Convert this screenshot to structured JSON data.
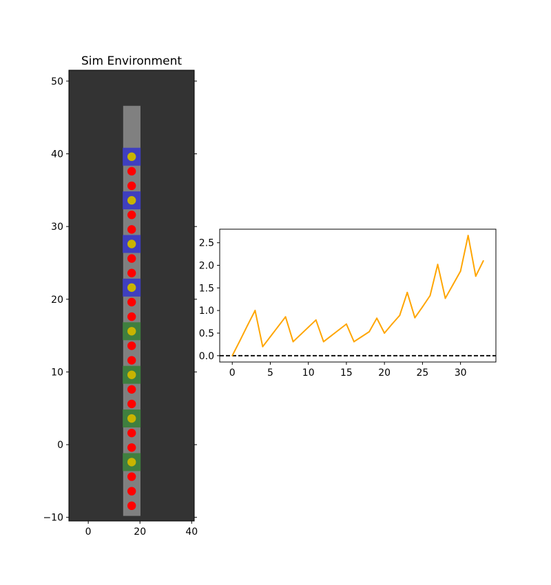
{
  "chart_data": [
    {
      "type": "scatter",
      "title": "Sim Environment",
      "xlabel": "",
      "ylabel": "",
      "xlim": [
        -7.5,
        41
      ],
      "ylim": [
        -10.5,
        51.5
      ],
      "xticks": [
        0,
        20,
        40
      ],
      "yticks": [
        -10,
        0,
        10,
        20,
        30,
        40,
        50
      ],
      "grid": false,
      "background_color": "#333333",
      "track": {
        "x_range": [
          13.5,
          20.2
        ],
        "y_range": [
          -9.8,
          46.6
        ],
        "color": "#808080"
      },
      "zones": [
        {
          "x": 16.8,
          "y": 39.6,
          "color": "#3f3fbf"
        },
        {
          "x": 16.8,
          "y": 33.6,
          "color": "#3f3fbf"
        },
        {
          "x": 16.8,
          "y": 27.6,
          "color": "#3f3fbf"
        },
        {
          "x": 16.8,
          "y": 21.6,
          "color": "#3f3fbf"
        },
        {
          "x": 16.8,
          "y": 15.6,
          "color": "#3f7f3f"
        },
        {
          "x": 16.8,
          "y": 9.6,
          "color": "#3f7f3f"
        },
        {
          "x": 16.8,
          "y": 3.6,
          "color": "#3f7f3f"
        },
        {
          "x": 16.8,
          "y": -2.4,
          "color": "#3f7f3f"
        }
      ],
      "yellow_points": {
        "color": "#c8b400",
        "x": 16.8,
        "y": [
          39.6,
          33.6,
          27.6,
          21.6,
          15.6,
          9.6,
          3.6,
          -2.4
        ]
      },
      "red_points": {
        "color": "#ff0000",
        "x": 16.8,
        "y": [
          37.6,
          35.6,
          31.6,
          29.6,
          25.6,
          23.6,
          19.6,
          17.6,
          13.6,
          11.6,
          7.6,
          5.6,
          1.6,
          -0.4,
          -4.4,
          -6.4,
          -8.4
        ]
      }
    },
    {
      "type": "line",
      "title": "",
      "xlabel": "",
      "ylabel": "",
      "xlim": [
        -1.65,
        34.65
      ],
      "ylim": [
        -0.14,
        2.8
      ],
      "xticks": [
        0,
        5,
        10,
        15,
        20,
        25,
        30
      ],
      "yticks": [
        0.0,
        0.5,
        1.0,
        1.5,
        2.0,
        2.5
      ],
      "ytick_labels": [
        "0.0",
        "0.5",
        "1.0",
        "1.5",
        "2.0",
        "2.5"
      ],
      "grid": false,
      "reference_line": {
        "y": 0,
        "style": "dashed",
        "color": "#000000"
      },
      "series": [
        {
          "color": "#ffa500",
          "x": [
            0,
            1,
            2,
            3,
            4,
            5,
            6,
            7,
            8,
            9,
            10,
            11,
            12,
            13,
            14,
            15,
            16,
            17,
            18,
            19,
            20,
            21,
            22,
            23,
            24,
            25,
            26,
            27,
            28,
            29,
            30,
            31,
            32,
            33
          ],
          "y": [
            0.0,
            0.33,
            0.67,
            1.0,
            0.2,
            0.42,
            0.64,
            0.86,
            0.31,
            0.47,
            0.63,
            0.79,
            0.31,
            0.44,
            0.57,
            0.7,
            0.31,
            0.42,
            0.53,
            0.83,
            0.5,
            0.7,
            0.89,
            1.4,
            0.84,
            1.08,
            1.33,
            2.02,
            1.27,
            1.57,
            1.87,
            2.66,
            1.76,
            2.1
          ]
        }
      ]
    }
  ]
}
